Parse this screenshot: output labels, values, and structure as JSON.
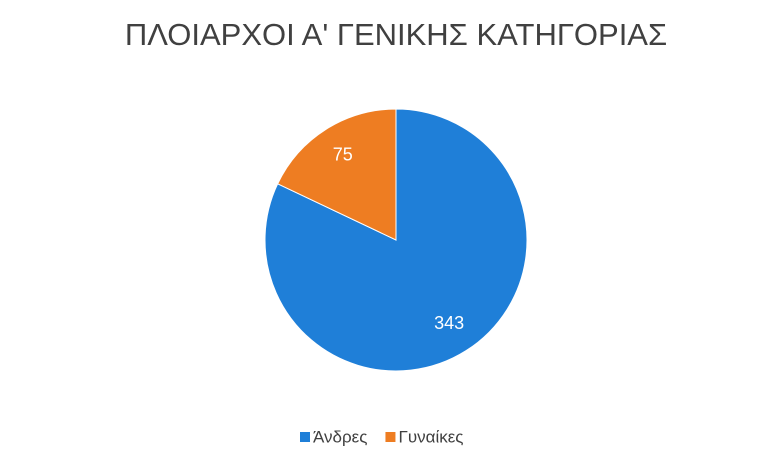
{
  "chart_data": {
    "type": "pie",
    "title": "ΠΛΟΙΑΡΧΟΙ Α' ΓΕΝΙΚΗΣ ΚΑΤΗΓΟΡΙΑΣ",
    "categories": [
      "Άνδρες",
      "Γυναίκες"
    ],
    "values": [
      343,
      75
    ],
    "colors": [
      "#1f7fd8",
      "#ee7d22"
    ]
  }
}
